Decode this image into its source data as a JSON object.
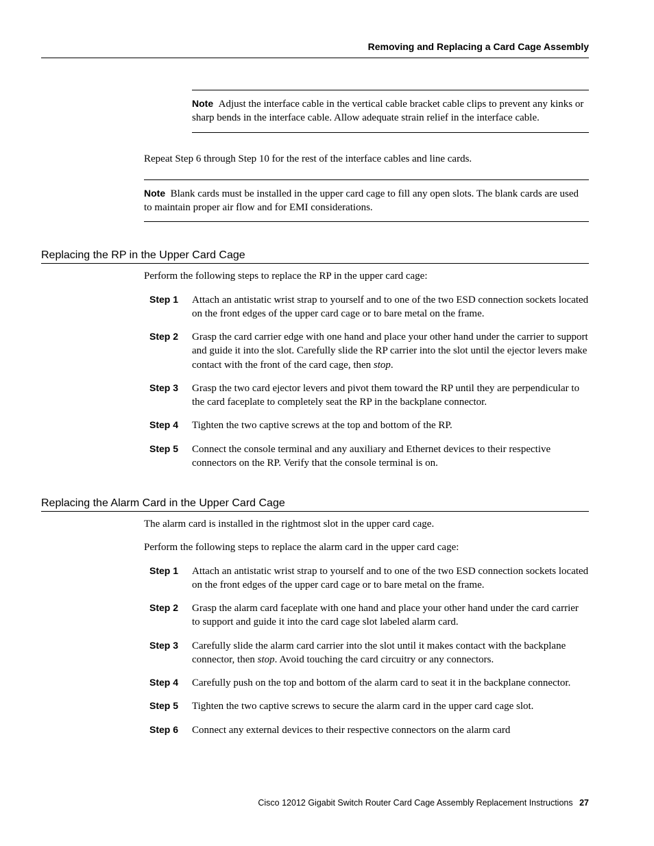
{
  "header": {
    "title": "Removing and Replacing a Card Cage Assembly"
  },
  "note1": {
    "label": "Note",
    "text": "Adjust the interface cable in the vertical cable bracket cable clips to prevent any kinks or sharp bends in the interface cable. Allow adequate strain relief in the interface cable."
  },
  "repeat_text": "Repeat Step 6 through Step 10 for the rest of the interface cables and line cards.",
  "note2": {
    "label": "Note",
    "text": "Blank cards must be installed in the upper card cage to fill any open slots. The blank cards are used to maintain proper air flow and for EMI considerations."
  },
  "section_rp": {
    "heading": "Replacing the RP in the Upper Card Cage",
    "intro": "Perform the following steps to replace the RP in the upper card cage:",
    "steps": [
      {
        "label": "Step 1",
        "text": "Attach an antistatic wrist strap to yourself and to one of the two ESD connection sockets located on the front edges of the upper card cage or to bare metal on the frame."
      },
      {
        "label": "Step 2",
        "pre": "Grasp the card carrier edge with one hand and place your other hand under the carrier to support and guide it into the slot. Carefully slide the RP carrier into the slot until the ejector levers make contact with the front of the card cage, then ",
        "italic": "stop",
        "post": "."
      },
      {
        "label": "Step 3",
        "text": "Grasp the two card ejector levers and pivot them toward the RP until they are perpendicular to the card faceplate to completely seat the RP in the backplane connector."
      },
      {
        "label": "Step 4",
        "text": "Tighten the two captive screws at the top and bottom of the RP."
      },
      {
        "label": "Step 5",
        "text": "Connect the console terminal and any auxiliary and Ethernet devices to their respective connectors on the RP. Verify that the console terminal is on."
      }
    ]
  },
  "section_alarm": {
    "heading": "Replacing the Alarm Card in the Upper Card Cage",
    "intro1": "The alarm card is installed in the rightmost slot in the upper card cage.",
    "intro2": "Perform the following steps to replace the alarm card in the upper card cage:",
    "steps": [
      {
        "label": "Step 1",
        "text": "Attach an antistatic wrist strap to yourself and to one of the two ESD connection sockets located on the front edges of the upper card cage or to bare metal on the frame."
      },
      {
        "label": "Step 2",
        "text": "Grasp the alarm card faceplate with one hand and place your other hand under the card carrier to support and guide it into the card cage slot labeled alarm card."
      },
      {
        "label": "Step 3",
        "pre": "Carefully slide the alarm card carrier into the slot until it makes contact with the backplane connector, then ",
        "italic": "stop",
        "post": ". Avoid touching the card circuitry or any connectors."
      },
      {
        "label": "Step 4",
        "text": "Carefully push on the top and bottom of the alarm card to seat it in the backplane connector."
      },
      {
        "label": "Step 5",
        "text": "Tighten the two captive screws to secure the alarm card in the upper card cage slot."
      },
      {
        "label": "Step 6",
        "text": "Connect any external devices to their respective connectors on the alarm card"
      }
    ]
  },
  "footer": {
    "text": "Cisco 12012 Gigabit Switch Router Card Cage Assembly Replacement Instructions",
    "page": "27"
  }
}
